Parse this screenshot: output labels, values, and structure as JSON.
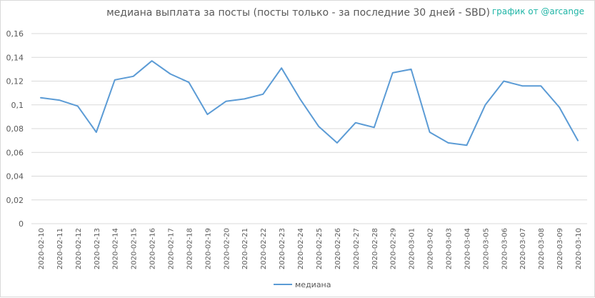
{
  "chart_data": {
    "type": "line",
    "title": "медиана выплата за посты  (посты только - за последние 30 дней - SBD)",
    "credit": "график от @arcange",
    "xlabel": "",
    "ylabel": "",
    "ylim": [
      0,
      0.16
    ],
    "y_ticks": [
      "0",
      "0,02",
      "0,04",
      "0,06",
      "0,08",
      "0,1",
      "0,12",
      "0,14",
      "0,16"
    ],
    "y_tick_values": [
      0,
      0.02,
      0.04,
      0.06,
      0.08,
      0.1,
      0.12,
      0.14,
      0.16
    ],
    "grid": true,
    "legend_position": "bottom",
    "line_color": "#5b9bd5",
    "grid_color": "#d9d9d9",
    "categories": [
      "2020-02-10",
      "2020-02-11",
      "2020-02-12",
      "2020-02-13",
      "2020-02-14",
      "2020-02-15",
      "2020-02-16",
      "2020-02-17",
      "2020-02-18",
      "2020-02-19",
      "2020-02-20",
      "2020-02-21",
      "2020-02-22",
      "2020-02-23",
      "2020-02-24",
      "2020-02-25",
      "2020-02-26",
      "2020-02-27",
      "2020-02-28",
      "2020-02-29",
      "2020-03-01",
      "2020-03-02",
      "2020-03-03",
      "2020-03-04",
      "2020-03-05",
      "2020-03-06",
      "2020-03-07",
      "2020-03-08",
      "2020-03-09",
      "2020-03-10"
    ],
    "series": [
      {
        "name": "медиана",
        "values": [
          0.106,
          0.104,
          0.099,
          0.077,
          0.121,
          0.124,
          0.137,
          0.126,
          0.119,
          0.092,
          0.103,
          0.105,
          0.109,
          0.131,
          0.105,
          0.082,
          0.068,
          0.085,
          0.081,
          0.127,
          0.13,
          0.077,
          0.068,
          0.066,
          0.1,
          0.12,
          0.116,
          0.116,
          0.098,
          0.07
        ]
      }
    ]
  }
}
